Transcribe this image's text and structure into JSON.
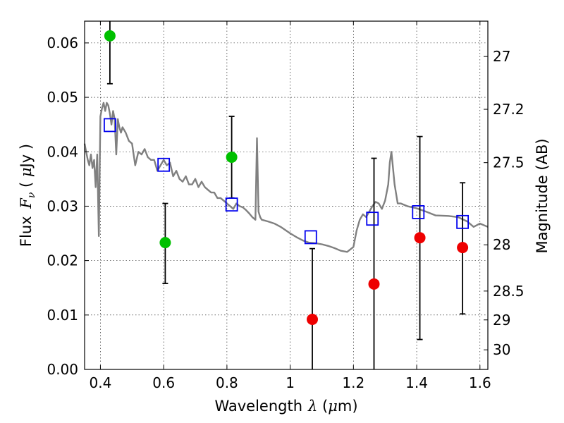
{
  "chart_data": {
    "type": "scatter",
    "x_label_text": "Wavelength",
    "x_label_symbol": "λ",
    "x_label_unit_open": " (",
    "x_label_unit_mu": "μ",
    "x_label_unit_rest": "m)",
    "y_label_text": "Flux ",
    "y_label_symbol": "F",
    "y_label_sub": "ν",
    "y_label_unit_open": " ( ",
    "y_label_unit_mu": "μ",
    "y_label_unit_rest": "Jy )",
    "y2_label": "Magnitude (AB)",
    "xlim": [
      0.35,
      1.625
    ],
    "ylim": [
      0,
      0.064
    ],
    "x_ticks": [
      0.4,
      0.6,
      0.8,
      1.0,
      1.2,
      1.4,
      1.6
    ],
    "x_tick_labels": [
      "0.4",
      "0.6",
      "0.8",
      "1",
      "1.2",
      "1.4",
      "1.6"
    ],
    "y_ticks": [
      0,
      0.01,
      0.02,
      0.03,
      0.04,
      0.05,
      0.06
    ],
    "y_tick_labels": [
      "0.00",
      "0.01",
      "0.02",
      "0.03",
      "0.04",
      "0.05",
      "0.06"
    ],
    "y2_tick_labels": [
      "27",
      "27.2",
      "27.5",
      "28",
      "28.5",
      "29",
      "30"
    ],
    "y2_tick_flux": [
      0.0575,
      0.0478,
      0.038,
      0.0229,
      0.0144,
      0.0091,
      0.0036
    ],
    "grid": true,
    "colors": {
      "model": "#808080",
      "green": "#00c000",
      "red": "#ee0000",
      "square": "#0000ee",
      "errorbar": "#000000"
    },
    "model_spectrum": {
      "x": [
        0.35,
        0.355,
        0.36,
        0.365,
        0.37,
        0.375,
        0.38,
        0.385,
        0.39,
        0.395,
        0.4,
        0.405,
        0.41,
        0.415,
        0.42,
        0.425,
        0.43,
        0.435,
        0.44,
        0.445,
        0.45,
        0.455,
        0.46,
        0.465,
        0.47,
        0.48,
        0.49,
        0.5,
        0.51,
        0.52,
        0.53,
        0.54,
        0.55,
        0.56,
        0.57,
        0.58,
        0.59,
        0.6,
        0.61,
        0.62,
        0.63,
        0.64,
        0.65,
        0.66,
        0.67,
        0.68,
        0.69,
        0.7,
        0.71,
        0.72,
        0.73,
        0.74,
        0.75,
        0.76,
        0.77,
        0.78,
        0.79,
        0.8,
        0.81,
        0.82,
        0.83,
        0.84,
        0.85,
        0.86,
        0.87,
        0.88,
        0.89,
        0.895,
        0.9,
        0.905,
        0.91,
        0.93,
        0.95,
        0.97,
        1.0,
        1.02,
        1.04,
        1.06,
        1.08,
        1.1,
        1.12,
        1.14,
        1.16,
        1.18,
        1.2,
        1.21,
        1.22,
        1.23,
        1.24,
        1.25,
        1.26,
        1.27,
        1.28,
        1.29,
        1.3,
        1.31,
        1.315,
        1.32,
        1.33,
        1.34,
        1.35,
        1.37,
        1.4,
        1.43,
        1.46,
        1.5,
        1.53,
        1.56,
        1.58,
        1.6,
        1.625
      ],
      "y": [
        0.0415,
        0.04,
        0.0385,
        0.0375,
        0.0395,
        0.037,
        0.0385,
        0.0335,
        0.0395,
        0.0245,
        0.0465,
        0.048,
        0.049,
        0.0475,
        0.049,
        0.0485,
        0.047,
        0.045,
        0.0475,
        0.046,
        0.0395,
        0.046,
        0.0445,
        0.0435,
        0.0445,
        0.0435,
        0.042,
        0.0415,
        0.0375,
        0.04,
        0.0395,
        0.0405,
        0.039,
        0.0385,
        0.0385,
        0.0365,
        0.0375,
        0.0385,
        0.0375,
        0.038,
        0.0355,
        0.0365,
        0.035,
        0.0345,
        0.0355,
        0.034,
        0.034,
        0.035,
        0.0335,
        0.0345,
        0.0335,
        0.033,
        0.0325,
        0.0325,
        0.0315,
        0.0315,
        0.031,
        0.0305,
        0.03,
        0.0295,
        0.0305,
        0.03,
        0.0298,
        0.0293,
        0.0287,
        0.028,
        0.0275,
        0.0425,
        0.029,
        0.028,
        0.0275,
        0.0272,
        0.0268,
        0.0262,
        0.025,
        0.0243,
        0.0237,
        0.0233,
        0.0232,
        0.023,
        0.0227,
        0.0223,
        0.0218,
        0.0216,
        0.0225,
        0.0255,
        0.0275,
        0.0285,
        0.028,
        0.029,
        0.03,
        0.0308,
        0.0305,
        0.0295,
        0.031,
        0.034,
        0.038,
        0.04,
        0.034,
        0.0305,
        0.0305,
        0.03,
        0.0296,
        0.029,
        0.0283,
        0.0282,
        0.028,
        0.0272,
        0.0262,
        0.0268,
        0.0262
      ]
    },
    "green_points": [
      {
        "x": 0.43,
        "y": 0.0613,
        "err_low": 0.0525,
        "err_high": 0.064
      },
      {
        "x": 0.605,
        "y": 0.0233,
        "err_low": 0.0158,
        "err_high": 0.0305
      },
      {
        "x": 0.815,
        "y": 0.039,
        "err_low": 0.0315,
        "err_high": 0.0465
      }
    ],
    "red_points": [
      {
        "x": 1.07,
        "y": 0.0092,
        "err_low": 0.0,
        "err_high": 0.0222
      },
      {
        "x": 1.265,
        "y": 0.0157,
        "err_low": 0.0,
        "err_high": 0.0388
      },
      {
        "x": 1.41,
        "y": 0.0242,
        "err_low": 0.0055,
        "err_high": 0.0428
      },
      {
        "x": 1.545,
        "y": 0.0224,
        "err_low": 0.0102,
        "err_high": 0.0343
      }
    ],
    "model_squares": [
      {
        "x": 0.43,
        "y": 0.0449
      },
      {
        "x": 0.6,
        "y": 0.0376
      },
      {
        "x": 0.815,
        "y": 0.0303
      },
      {
        "x": 1.065,
        "y": 0.0243
      },
      {
        "x": 1.26,
        "y": 0.0277
      },
      {
        "x": 1.405,
        "y": 0.0289
      },
      {
        "x": 1.545,
        "y": 0.0271
      }
    ]
  }
}
